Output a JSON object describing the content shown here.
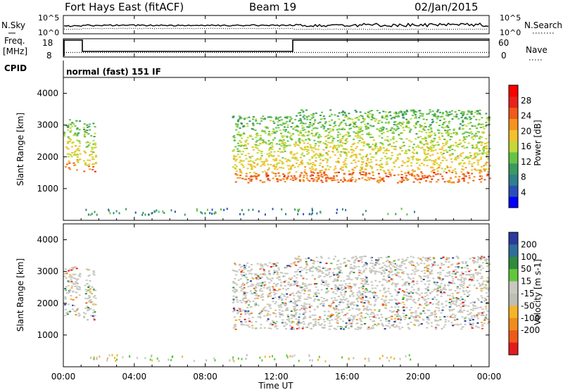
{
  "header": {
    "station": "Fort Hays East (fitACF)",
    "beam": "Beam 19",
    "date": "02/Jan/2015"
  },
  "panels": {
    "noise": {
      "left_label": "N.Sky",
      "right_label": "N.Search",
      "left_ticks": [
        "10^5",
        "10^0"
      ],
      "right_ticks": [
        "10^5",
        "10^0"
      ]
    },
    "freq": {
      "left_label_line1": "Freq.",
      "left_label_line2": "[MHz]",
      "right_label": "Nave",
      "left_ticks": [
        "18",
        "8"
      ],
      "right_ticks": [
        "60",
        "0"
      ]
    },
    "cpid": {
      "label": "CPID",
      "value": "normal (fast) 151 IF"
    }
  },
  "colors": {
    "power": [
      "#0000ff",
      "#2a4fb8",
      "#2f7f8c",
      "#3a9a5f",
      "#64c447",
      "#c4d837",
      "#f5c12d",
      "#f4931e",
      "#f05a1c",
      "#e8221b",
      "#ff0000"
    ],
    "velocity": [
      "#2b3a9c",
      "#2f6e9a",
      "#2e8c3c",
      "#63c63a",
      "#c8c8c0",
      "#bebeb4",
      "#f5b42a",
      "#f08c1c",
      "#ee5a1a",
      "#e51b1b"
    ]
  },
  "chart_data": [
    {
      "type": "heatmap",
      "name": "power",
      "ylabel": "Slant Range [km]",
      "ylim": [
        0,
        4500
      ],
      "yticks": [
        1000,
        2000,
        3000,
        4000
      ],
      "x_range": [
        "00:00",
        "24:00"
      ],
      "colorbar": {
        "label": "Power [dB]",
        "ticks": [
          4,
          8,
          12,
          16,
          20,
          24,
          28
        ],
        "range": [
          0,
          32
        ]
      },
      "echo_regions": [
        {
          "start_hour": 0.0,
          "end_hour": 0.9,
          "lower_km": 1600,
          "upper_km": 3200
        },
        {
          "start_hour": 1.1,
          "end_hour": 1.8,
          "lower_km": 1500,
          "upper_km": 3100
        },
        {
          "start_hour": 9.5,
          "end_hour": 13.0,
          "lower_km": 1200,
          "upper_km": 3300
        },
        {
          "start_hour": 13.0,
          "end_hour": 24.0,
          "lower_km": 1200,
          "upper_km": 3500
        }
      ]
    },
    {
      "type": "heatmap",
      "name": "velocity",
      "ylabel": "Slant Range [km]",
      "xlabel": "Time UT",
      "ylim": [
        0,
        4500
      ],
      "yticks": [
        1000,
        2000,
        3000,
        4000
      ],
      "xticks": [
        "00:00",
        "04:00",
        "08:00",
        "12:00",
        "16:00",
        "20:00",
        "00:00"
      ],
      "colorbar": {
        "label": "Velocity [m s-1]",
        "tick_labels": [
          "200",
          "100",
          "50",
          "15",
          "-15",
          "-50",
          "-100",
          "-200"
        ]
      },
      "echo_regions": [
        {
          "start_hour": 0.0,
          "end_hour": 0.9,
          "lower_km": 1600,
          "upper_km": 3200
        },
        {
          "start_hour": 1.1,
          "end_hour": 1.8,
          "lower_km": 1500,
          "upper_km": 3100
        },
        {
          "start_hour": 9.5,
          "end_hour": 13.0,
          "lower_km": 1200,
          "upper_km": 3300
        },
        {
          "start_hour": 13.0,
          "end_hour": 24.0,
          "lower_km": 1200,
          "upper_km": 3500
        }
      ]
    }
  ]
}
